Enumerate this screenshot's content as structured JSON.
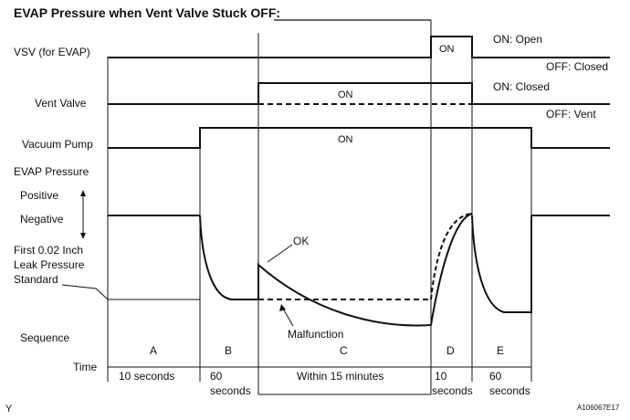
{
  "title": "EVAP Pressure when Vent Valve Stuck OFF:",
  "rows": {
    "vsv": "VSV (for EVAP)",
    "vent": "Vent Valve",
    "pump": "Vacuum Pump",
    "evap": "EVAP Pressure",
    "positive": "Positive",
    "negative": "Negative",
    "leak_line1": "First 0.02 Inch",
    "leak_line2": "Leak Pressure",
    "leak_line3": "Standard",
    "sequence": "Sequence",
    "time": "Time"
  },
  "states": {
    "on": "ON",
    "vsv_on": "ON: Open",
    "vsv_off": "OFF: Closed",
    "vent_on": "ON: Closed",
    "vent_off": "OFF: Vent"
  },
  "curves": {
    "ok": "OK",
    "malfunction": "Malfunction"
  },
  "sequence": [
    "A",
    "B",
    "C",
    "D",
    "E"
  ],
  "times": {
    "a": "10 seconds",
    "b1": "60",
    "b2": "seconds",
    "c": "Within 15 minutes",
    "d1": "10",
    "d2": "seconds",
    "e1": "60",
    "e2": "seconds"
  },
  "corner_left": "Y",
  "figure_code": "A106067E17"
}
